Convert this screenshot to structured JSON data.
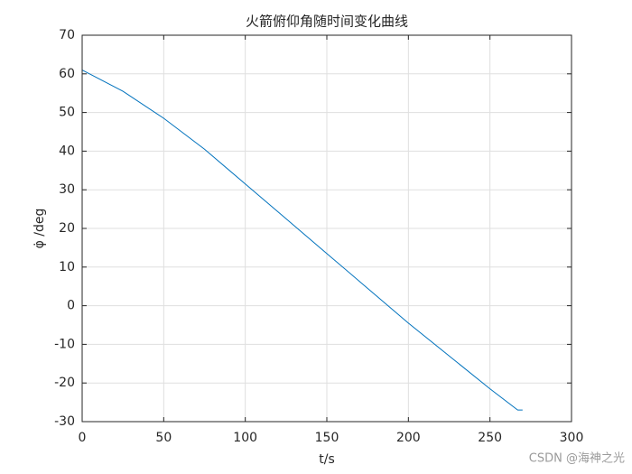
{
  "chart_data": {
    "type": "line",
    "title": "火箭俯仰角随时间变化曲线",
    "xlabel": "t/s",
    "ylabel": "φ̇ /deg",
    "x": [
      0,
      25,
      50,
      75,
      100,
      125,
      150,
      175,
      200,
      225,
      250,
      267,
      270
    ],
    "series": [
      {
        "color": "#0072bd",
        "values": [
          61,
          55.5,
          48.5,
          40.5,
          31.5,
          22.5,
          13.5,
          4.5,
          -4.5,
          -13,
          -21.5,
          -27,
          -27
        ]
      }
    ],
    "xlim": [
      0,
      300
    ],
    "xticks": [
      0,
      50,
      100,
      150,
      200,
      250,
      300
    ],
    "ylim": [
      -30,
      70
    ],
    "yticks": [
      -30,
      -20,
      -10,
      0,
      10,
      20,
      30,
      40,
      50,
      60,
      70
    ],
    "grid": true,
    "watermark": "CSDN @海神之光"
  }
}
